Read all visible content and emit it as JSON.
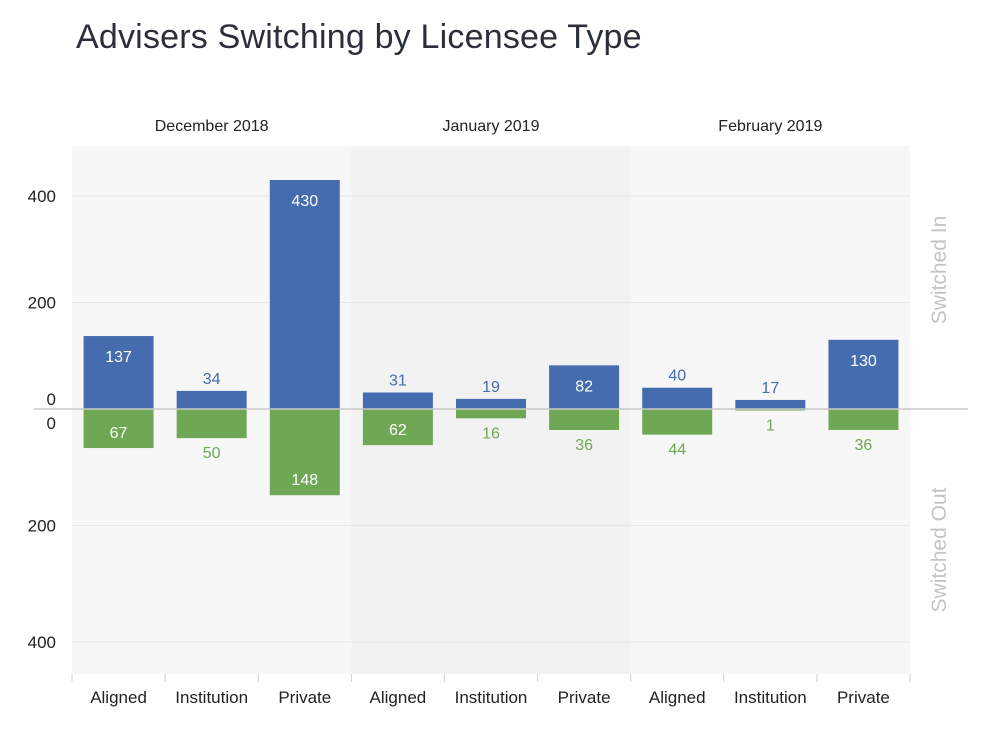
{
  "title": "Advisers Switching by Licensee Type",
  "colors": {
    "switched_in": "#456caf",
    "switched_out": "#6ea854",
    "panel_light": "#f7f7f7",
    "panel_dark": "#f2f2f2",
    "side_label": "#c4c4c4"
  },
  "chart_data": {
    "type": "bar",
    "title": "Advisers Switching by Licensee Type",
    "groups": [
      "December 2018",
      "January 2019",
      "February 2019"
    ],
    "categories": [
      "Aligned",
      "Institution",
      "Private"
    ],
    "side_labels": {
      "top": "Switched In",
      "bottom": "Switched Out"
    },
    "y_ticks_top": [
      400,
      200,
      0
    ],
    "y_ticks_bottom": [
      0,
      200,
      400
    ],
    "ylim_top": [
      0,
      480
    ],
    "ylim_bottom": [
      0,
      460
    ],
    "series": [
      {
        "name": "Switched In",
        "values": [
          [
            137,
            34,
            430
          ],
          [
            31,
            19,
            82
          ],
          [
            40,
            17,
            130
          ]
        ]
      },
      {
        "name": "Switched Out",
        "values": [
          [
            67,
            50,
            148
          ],
          [
            62,
            16,
            36
          ],
          [
            44,
            1,
            36
          ]
        ]
      }
    ],
    "grid": true
  }
}
